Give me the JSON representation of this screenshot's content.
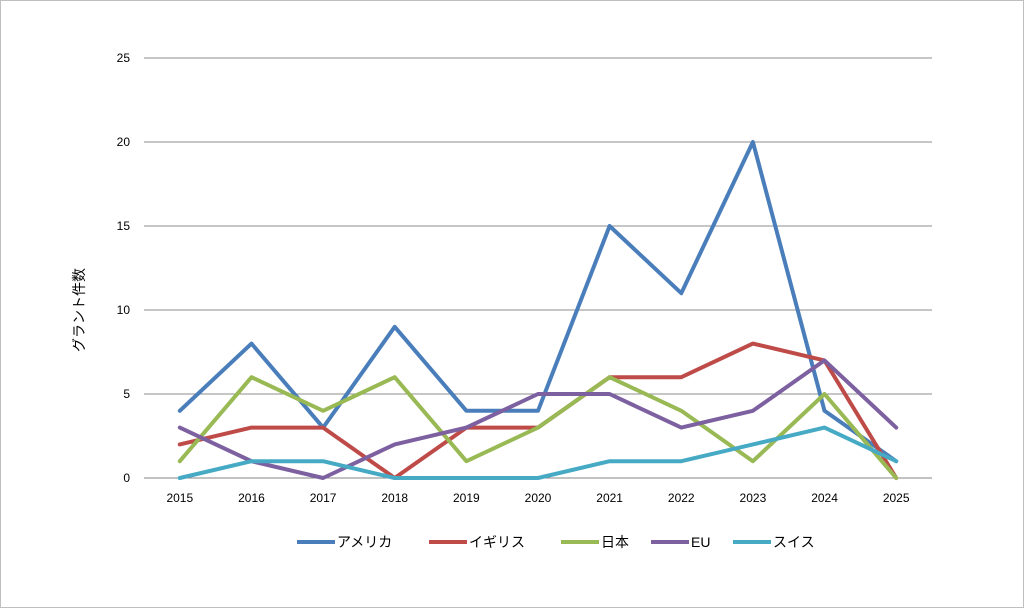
{
  "chart_data": {
    "type": "line",
    "title": "",
    "xlabel": "",
    "ylabel": "グラント件数",
    "x": [
      "2015",
      "2016",
      "2017",
      "2018",
      "2019",
      "2020",
      "2021",
      "2022",
      "2023",
      "2024",
      "2025"
    ],
    "ylim": [
      0,
      25
    ],
    "yticks": [
      0,
      5,
      10,
      15,
      20,
      25
    ],
    "grid": true,
    "legend": "bottom",
    "series": [
      {
        "name": "アメリカ",
        "color": "#4a7ebb",
        "values": [
          4,
          8,
          3,
          9,
          4,
          4,
          15,
          11,
          20,
          4,
          1
        ]
      },
      {
        "name": "イギリス",
        "color": "#be4b48",
        "values": [
          2,
          3,
          3,
          0,
          3,
          3,
          6,
          6,
          8,
          7,
          0
        ]
      },
      {
        "name": "日本",
        "color": "#98b954",
        "values": [
          1,
          6,
          4,
          6,
          1,
          3,
          6,
          4,
          1,
          5,
          0
        ]
      },
      {
        "name": "EU",
        "color": "#7d60a0",
        "values": [
          3,
          1,
          0,
          2,
          3,
          5,
          5,
          3,
          4,
          7,
          3
        ]
      },
      {
        "name": "スイス",
        "color": "#46aac5",
        "values": [
          0,
          1,
          1,
          0,
          0,
          0,
          1,
          1,
          2,
          3,
          1
        ]
      }
    ]
  }
}
